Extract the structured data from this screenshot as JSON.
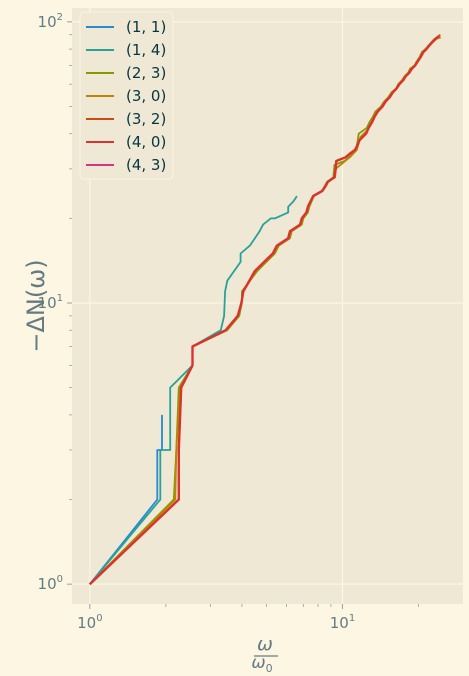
{
  "chart_data": {
    "type": "line",
    "xscale": "log",
    "yscale": "log",
    "xlim": [
      0.85,
      30
    ],
    "ylim": [
      0.85,
      112
    ],
    "xlabel": "ω / ω₀",
    "xlabel_numerator": "ω",
    "xlabel_denominator_base": "ω",
    "xlabel_denominator_sub": "0",
    "ylabel": "−ΔN(ω)",
    "grid": true,
    "legend_position": "upper-left",
    "x_ticks": [
      {
        "value": 1,
        "base": "10",
        "exp": "0"
      },
      {
        "value": 10,
        "base": "10",
        "exp": "1"
      }
    ],
    "y_ticks": [
      {
        "value": 1,
        "base": "10",
        "exp": "0"
      },
      {
        "value": 10,
        "base": "10",
        "exp": "1"
      },
      {
        "value": 100,
        "base": "10",
        "exp": "2"
      }
    ],
    "series": [
      {
        "name": "(1, 1)",
        "color": "#268bd2",
        "points": [
          [
            1,
            1
          ],
          [
            1.85,
            2
          ],
          [
            1.85,
            3
          ],
          [
            1.93,
            3
          ],
          [
            1.93,
            4
          ]
        ]
      },
      {
        "name": "(1, 4)",
        "color": "#2aa198",
        "points": [
          [
            1,
            1
          ],
          [
            1.9,
            2
          ],
          [
            1.9,
            3
          ],
          [
            2.08,
            3
          ],
          [
            2.08,
            5
          ],
          [
            2.55,
            6
          ],
          [
            2.55,
            7
          ],
          [
            3.3,
            8
          ],
          [
            3.4,
            9
          ],
          [
            3.43,
            11
          ],
          [
            3.5,
            12
          ],
          [
            3.95,
            14
          ],
          [
            3.95,
            15
          ],
          [
            4.3,
            16
          ],
          [
            4.5,
            17
          ],
          [
            4.7,
            18
          ],
          [
            4.85,
            19
          ],
          [
            5.2,
            20
          ],
          [
            5.4,
            20
          ],
          [
            6.1,
            21
          ],
          [
            6.1,
            22
          ],
          [
            6.4,
            23
          ],
          [
            6.6,
            24
          ]
        ]
      },
      {
        "name": "(2, 3)",
        "color": "#859900",
        "points": [
          [
            1,
            1
          ],
          [
            2.15,
            2
          ],
          [
            2.2,
            3
          ],
          [
            2.25,
            5
          ],
          [
            2.55,
            6
          ],
          [
            2.55,
            7
          ],
          [
            3.5,
            8
          ],
          [
            3.9,
            9
          ],
          [
            4,
            10
          ],
          [
            4,
            11
          ],
          [
            4.6,
            13
          ],
          [
            5,
            14
          ],
          [
            5.4,
            15
          ],
          [
            5.6,
            16
          ],
          [
            6.2,
            17
          ],
          [
            6.3,
            18
          ],
          [
            6.9,
            19
          ],
          [
            7,
            20
          ],
          [
            7.3,
            21
          ],
          [
            7.4,
            22
          ],
          [
            7.7,
            24
          ],
          [
            8.3,
            25
          ],
          [
            8.5,
            26
          ],
          [
            8.7,
            27
          ],
          [
            9.2,
            28
          ],
          [
            9.3,
            31
          ],
          [
            10.2,
            32
          ],
          [
            10.6,
            33
          ],
          [
            11.3,
            35
          ],
          [
            11.5,
            38
          ],
          [
            11.6,
            40
          ],
          [
            12.5,
            42
          ],
          [
            12.8,
            44
          ],
          [
            13.2,
            46
          ],
          [
            13.5,
            48
          ],
          [
            14.2,
            50
          ],
          [
            14.6,
            52
          ],
          [
            15.2,
            54
          ],
          [
            15.6,
            56
          ],
          [
            16.3,
            58
          ],
          [
            16.6,
            60
          ],
          [
            17.2,
            62
          ],
          [
            17.6,
            64
          ],
          [
            18.2,
            66
          ],
          [
            18.5,
            68
          ],
          [
            19.3,
            70
          ],
          [
            19.6,
            72
          ],
          [
            20.2,
            75
          ],
          [
            20.6,
            78
          ],
          [
            21.3,
            80
          ],
          [
            21.8,
            82
          ],
          [
            22.6,
            85
          ],
          [
            23.2,
            87
          ],
          [
            23.8,
            88
          ]
        ]
      },
      {
        "name": "(3, 0)",
        "color": "#b58900",
        "points": [
          [
            1,
            1
          ],
          [
            2.18,
            2
          ],
          [
            2.2,
            3
          ],
          [
            2.28,
            5
          ],
          [
            2.55,
            6
          ],
          [
            2.55,
            7
          ],
          [
            3.48,
            8
          ],
          [
            3.85,
            9
          ],
          [
            3.98,
            10
          ],
          [
            4.05,
            11
          ],
          [
            4.55,
            13
          ],
          [
            4.95,
            14
          ],
          [
            5.35,
            15
          ],
          [
            5.55,
            16
          ],
          [
            6.15,
            17
          ],
          [
            6.25,
            18
          ],
          [
            6.85,
            19
          ],
          [
            6.95,
            20
          ],
          [
            7.25,
            21
          ],
          [
            7.35,
            22
          ],
          [
            7.7,
            24
          ],
          [
            8.35,
            25
          ],
          [
            8.6,
            26
          ],
          [
            8.8,
            27
          ],
          [
            9.35,
            28
          ],
          [
            9.4,
            30
          ],
          [
            10.25,
            32
          ],
          [
            10.7,
            33
          ],
          [
            11.4,
            35
          ],
          [
            11.6,
            37
          ],
          [
            11.8,
            39
          ],
          [
            12.5,
            41
          ],
          [
            12.9,
            43
          ],
          [
            13.3,
            46
          ],
          [
            13.6,
            48
          ],
          [
            14.3,
            50
          ],
          [
            14.7,
            52
          ],
          [
            15.3,
            54
          ],
          [
            15.7,
            56
          ],
          [
            16.4,
            58
          ],
          [
            16.7,
            60
          ],
          [
            17.3,
            62
          ],
          [
            17.7,
            64
          ],
          [
            18.3,
            66
          ],
          [
            18.6,
            68
          ],
          [
            19.4,
            70
          ],
          [
            19.7,
            72
          ],
          [
            20.3,
            75
          ],
          [
            20.7,
            78
          ],
          [
            21.4,
            80
          ],
          [
            22,
            82
          ],
          [
            22.9,
            85
          ],
          [
            23.6,
            87
          ],
          [
            24.5,
            88
          ]
        ]
      },
      {
        "name": "(3, 2)",
        "color": "#cb4b16",
        "points": [
          [
            1,
            1
          ],
          [
            2.25,
            2
          ],
          [
            2.25,
            3
          ],
          [
            2.3,
            5
          ],
          [
            2.55,
            6
          ],
          [
            2.55,
            7
          ],
          [
            3.45,
            8
          ],
          [
            3.85,
            9
          ],
          [
            3.98,
            10
          ],
          [
            4.05,
            11
          ],
          [
            4.5,
            13
          ],
          [
            4.9,
            14
          ],
          [
            5.3,
            15
          ],
          [
            5.5,
            16
          ],
          [
            6.1,
            17
          ],
          [
            6.2,
            18
          ],
          [
            6.8,
            19
          ],
          [
            6.9,
            20
          ],
          [
            7.2,
            21
          ],
          [
            7.3,
            22
          ],
          [
            7.65,
            24
          ],
          [
            8.3,
            25
          ],
          [
            8.55,
            26
          ],
          [
            8.75,
            27
          ],
          [
            9.3,
            28
          ],
          [
            9.4,
            30
          ],
          [
            9.45,
            32
          ],
          [
            10.3,
            33
          ],
          [
            10.7,
            34
          ],
          [
            11.2,
            35
          ],
          [
            11.4,
            36
          ],
          [
            11.7,
            38
          ],
          [
            12.4,
            40
          ],
          [
            12.7,
            42
          ],
          [
            13.1,
            44
          ],
          [
            13.4,
            46
          ],
          [
            13.8,
            48
          ],
          [
            14.4,
            50
          ],
          [
            14.8,
            52
          ],
          [
            15.4,
            54
          ],
          [
            15.8,
            56
          ],
          [
            16.4,
            58
          ],
          [
            16.8,
            60
          ],
          [
            17.4,
            62
          ],
          [
            17.8,
            64
          ],
          [
            18.4,
            66
          ],
          [
            18.8,
            68
          ],
          [
            19.4,
            70
          ],
          [
            19.8,
            72
          ],
          [
            20.4,
            75
          ],
          [
            20.9,
            78
          ],
          [
            21.5,
            80
          ],
          [
            22.2,
            83
          ],
          [
            23,
            86
          ],
          [
            23.7,
            88
          ],
          [
            24.4,
            90
          ]
        ]
      },
      {
        "name": "(4, 0)",
        "color": "#dc322f",
        "points": [
          [
            1,
            1
          ],
          [
            2.25,
            2
          ],
          [
            2.25,
            3
          ],
          [
            2.3,
            5
          ],
          [
            2.55,
            6
          ],
          [
            2.55,
            7
          ],
          [
            3.45,
            8
          ],
          [
            3.85,
            9
          ],
          [
            3.98,
            10
          ],
          [
            4.05,
            11
          ],
          [
            4.5,
            13
          ],
          [
            4.9,
            14
          ],
          [
            5.3,
            15
          ],
          [
            5.5,
            16
          ],
          [
            6.1,
            17
          ],
          [
            6.2,
            18
          ],
          [
            6.8,
            19
          ],
          [
            6.9,
            20
          ],
          [
            7.2,
            21
          ],
          [
            7.3,
            22
          ],
          [
            7.65,
            24
          ],
          [
            8.3,
            25
          ],
          [
            8.55,
            26
          ],
          [
            8.75,
            27
          ],
          [
            9.3,
            28
          ],
          [
            9.4,
            30
          ],
          [
            9.45,
            32
          ],
          [
            10.3,
            33
          ],
          [
            10.7,
            34
          ],
          [
            11.2,
            35
          ],
          [
            11.4,
            36
          ],
          [
            11.7,
            38
          ],
          [
            12.4,
            40
          ],
          [
            12.7,
            42
          ],
          [
            13.1,
            44
          ],
          [
            13.4,
            46
          ],
          [
            13.8,
            48
          ],
          [
            14.4,
            50
          ],
          [
            14.8,
            52
          ],
          [
            15.4,
            54
          ],
          [
            15.8,
            56
          ],
          [
            16.4,
            58
          ],
          [
            16.8,
            60
          ],
          [
            17.4,
            62
          ],
          [
            17.8,
            64
          ],
          [
            18.4,
            66
          ],
          [
            18.8,
            68
          ],
          [
            19.4,
            70
          ],
          [
            19.8,
            72
          ],
          [
            20.4,
            75
          ],
          [
            20.9,
            78
          ],
          [
            21.5,
            80
          ],
          [
            22.2,
            83
          ],
          [
            23,
            86
          ],
          [
            23.7,
            88
          ],
          [
            24.2,
            89
          ]
        ]
      },
      {
        "name": "(4, 3)",
        "color": "#d33682",
        "points": []
      }
    ]
  }
}
